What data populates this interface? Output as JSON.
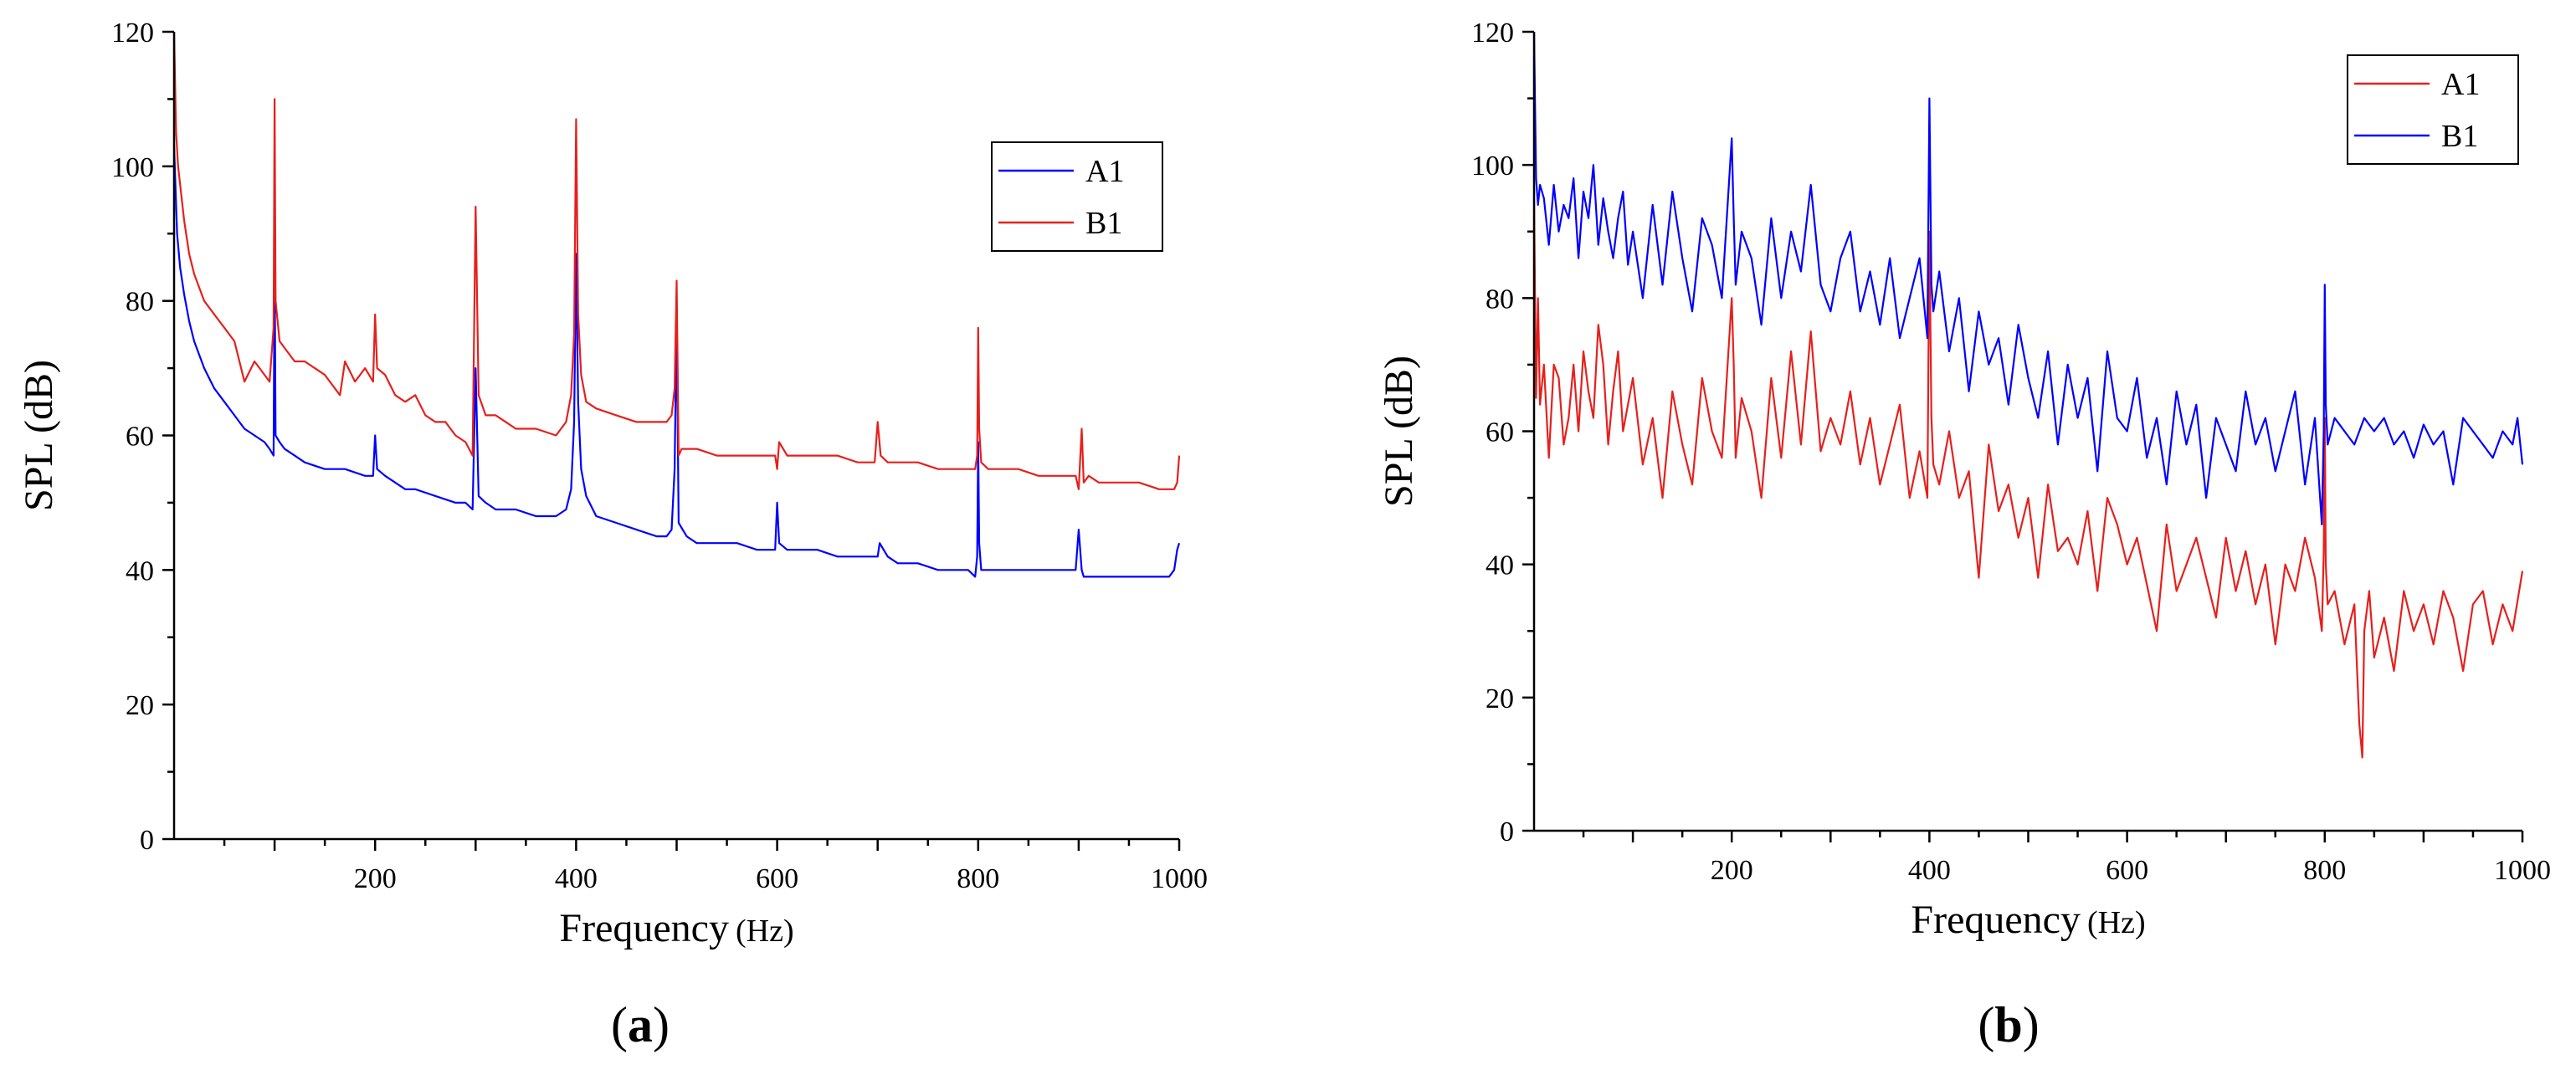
{
  "chart_data": [
    {
      "type": "line",
      "caption_prefix": "(",
      "caption_letter": "a",
      "caption_suffix": ")",
      "xlabel": "Frequency",
      "xlabel_unit": "(Hz)",
      "ylabel": "SPL (dB)",
      "xlim": [
        0,
        1000
      ],
      "ylim": [
        0,
        120
      ],
      "xticks": [
        200,
        400,
        600,
        800,
        1000
      ],
      "yticks": [
        0,
        20,
        40,
        60,
        80,
        100,
        120
      ],
      "legend_position": "top-right",
      "series": [
        {
          "name": "A1",
          "color": "#0000ff",
          "x": [
            0,
            3,
            6,
            10,
            15,
            20,
            30,
            40,
            50,
            60,
            70,
            80,
            90,
            95,
            99,
            100,
            101,
            105,
            110,
            120,
            130,
            150,
            170,
            190,
            198,
            200,
            202,
            210,
            220,
            230,
            240,
            260,
            280,
            290,
            297,
            300,
            303,
            310,
            320,
            340,
            360,
            380,
            390,
            395,
            398,
            400,
            402,
            405,
            410,
            420,
            440,
            460,
            480,
            490,
            495,
            498,
            500,
            502,
            510,
            520,
            540,
            560,
            580,
            590,
            598,
            600,
            602,
            610,
            620,
            640,
            660,
            680,
            690,
            700,
            702,
            710,
            720,
            740,
            760,
            780,
            790,
            797,
            799,
            800,
            801,
            803,
            810,
            820,
            840,
            860,
            880,
            890,
            897,
            900,
            903,
            905,
            910,
            920,
            940,
            960,
            980,
            990,
            995,
            998,
            1000
          ],
          "y": [
            103,
            90,
            85,
            81,
            77,
            74,
            70,
            67,
            65,
            63,
            61,
            60,
            59,
            58,
            57,
            86,
            60,
            59,
            58,
            57,
            56,
            55,
            55,
            54,
            54,
            60,
            55,
            54,
            53,
            52,
            52,
            51,
            50,
            50,
            49,
            70,
            51,
            50,
            49,
            49,
            48,
            48,
            49,
            52,
            62,
            87,
            65,
            55,
            51,
            48,
            47,
            46,
            45,
            45,
            46,
            55,
            78,
            47,
            45,
            44,
            44,
            44,
            43,
            43,
            43,
            50,
            44,
            43,
            43,
            43,
            42,
            42,
            42,
            42,
            44,
            42,
            41,
            41,
            40,
            40,
            40,
            39,
            42,
            59,
            44,
            40,
            40,
            40,
            40,
            40,
            40,
            40,
            40,
            46,
            40,
            39,
            39,
            39,
            39,
            39,
            39,
            39,
            40,
            43,
            44
          ]
        },
        {
          "name": "B1",
          "color": "#e6201c",
          "x": [
            0,
            2,
            4,
            7,
            10,
            15,
            20,
            30,
            40,
            50,
            60,
            70,
            80,
            90,
            95,
            99,
            100,
            101,
            105,
            110,
            120,
            130,
            150,
            165,
            170,
            180,
            190,
            198,
            200,
            202,
            210,
            220,
            230,
            240,
            250,
            260,
            270,
            280,
            290,
            297,
            300,
            303,
            310,
            320,
            330,
            340,
            360,
            380,
            390,
            395,
            398,
            400,
            402,
            405,
            410,
            420,
            440,
            460,
            480,
            490,
            495,
            498,
            500,
            502,
            505,
            510,
            520,
            540,
            560,
            580,
            590,
            598,
            600,
            602,
            610,
            620,
            640,
            660,
            680,
            690,
            697,
            700,
            703,
            710,
            720,
            740,
            760,
            780,
            790,
            797,
            799,
            800,
            801,
            803,
            810,
            820,
            840,
            860,
            880,
            890,
            897,
            900,
            903,
            905,
            910,
            920,
            940,
            960,
            980,
            990,
            995,
            998,
            1000
          ],
          "y": [
            120,
            105,
            100,
            96,
            92,
            87,
            84,
            80,
            78,
            76,
            74,
            68,
            71,
            69,
            68,
            76,
            110,
            80,
            74,
            73,
            71,
            71,
            69,
            66,
            71,
            68,
            70,
            68,
            78,
            70,
            69,
            66,
            65,
            66,
            63,
            62,
            62,
            60,
            59,
            57,
            94,
            66,
            63,
            63,
            62,
            61,
            61,
            60,
            62,
            66,
            75,
            107,
            78,
            69,
            65,
            64,
            63,
            62,
            62,
            62,
            63,
            67,
            83,
            57,
            58,
            58,
            58,
            57,
            57,
            57,
            57,
            57,
            55,
            59,
            57,
            57,
            57,
            57,
            56,
            56,
            56,
            62,
            57,
            56,
            56,
            56,
            55,
            55,
            55,
            55,
            57,
            76,
            61,
            56,
            55,
            55,
            55,
            54,
            54,
            54,
            54,
            52,
            61,
            53,
            54,
            53,
            53,
            53,
            52,
            52,
            52,
            53,
            57
          ]
        }
      ]
    },
    {
      "type": "line",
      "caption_prefix": "(",
      "caption_letter": "b",
      "caption_suffix": ")",
      "xlabel": "Frequency",
      "xlabel_unit": "(Hz)",
      "ylabel": "SPL (dB)",
      "xlim": [
        0,
        1000
      ],
      "ylim": [
        0,
        120
      ],
      "xticks": [
        200,
        400,
        600,
        800,
        1000
      ],
      "yticks": [
        0,
        20,
        40,
        60,
        80,
        100,
        120
      ],
      "legend_position": "top-right",
      "series": [
        {
          "name": "A1",
          "color": "#e6201c",
          "x": [
            0,
            2,
            4,
            6,
            10,
            15,
            20,
            25,
            30,
            35,
            40,
            45,
            50,
            55,
            60,
            65,
            70,
            75,
            80,
            85,
            90,
            95,
            100,
            110,
            120,
            130,
            140,
            150,
            160,
            170,
            180,
            190,
            200,
            202,
            204,
            210,
            220,
            230,
            240,
            250,
            260,
            270,
            280,
            290,
            300,
            310,
            320,
            330,
            340,
            350,
            360,
            370,
            380,
            390,
            398,
            400,
            402,
            404,
            410,
            420,
            430,
            440,
            450,
            460,
            470,
            480,
            490,
            500,
            510,
            520,
            530,
            540,
            550,
            560,
            570,
            580,
            590,
            600,
            610,
            620,
            630,
            640,
            650,
            660,
            670,
            680,
            690,
            700,
            710,
            720,
            730,
            740,
            750,
            760,
            770,
            780,
            790,
            797,
            799,
            800,
            801,
            803,
            810,
            820,
            830,
            835,
            838,
            840,
            845,
            850,
            860,
            870,
            880,
            890,
            900,
            910,
            920,
            930,
            940,
            950,
            960,
            970,
            980,
            990,
            1000
          ],
          "y": [
            95,
            65,
            80,
            64,
            70,
            56,
            70,
            68,
            58,
            62,
            70,
            60,
            72,
            66,
            62,
            76,
            70,
            58,
            66,
            72,
            60,
            64,
            68,
            55,
            62,
            50,
            66,
            58,
            52,
            68,
            60,
            56,
            80,
            70,
            56,
            65,
            60,
            50,
            68,
            56,
            72,
            58,
            75,
            57,
            62,
            58,
            66,
            55,
            62,
            52,
            58,
            64,
            50,
            57,
            50,
            90,
            62,
            55,
            52,
            60,
            50,
            54,
            38,
            58,
            48,
            52,
            44,
            50,
            38,
            52,
            42,
            44,
            40,
            48,
            36,
            50,
            46,
            40,
            44,
            37,
            30,
            46,
            36,
            40,
            44,
            38,
            32,
            44,
            36,
            42,
            34,
            40,
            28,
            40,
            36,
            44,
            38,
            30,
            42,
            62,
            40,
            34,
            36,
            28,
            34,
            16,
            11,
            30,
            36,
            26,
            32,
            24,
            36,
            30,
            34,
            28,
            36,
            32,
            24,
            34,
            36,
            28,
            34,
            30,
            39
          ]
        },
        {
          "name": "B1",
          "color": "#0000ff",
          "x": [
            0,
            2,
            4,
            6,
            10,
            15,
            20,
            25,
            30,
            35,
            40,
            45,
            50,
            55,
            60,
            65,
            70,
            75,
            80,
            85,
            90,
            95,
            100,
            110,
            120,
            130,
            140,
            150,
            160,
            170,
            180,
            190,
            200,
            202,
            204,
            210,
            220,
            230,
            240,
            250,
            260,
            270,
            280,
            290,
            300,
            310,
            320,
            330,
            340,
            350,
            360,
            370,
            380,
            390,
            398,
            400,
            402,
            404,
            410,
            420,
            430,
            440,
            450,
            460,
            470,
            480,
            490,
            500,
            510,
            520,
            530,
            540,
            550,
            560,
            570,
            580,
            590,
            600,
            610,
            620,
            630,
            640,
            650,
            660,
            670,
            680,
            690,
            700,
            710,
            720,
            730,
            740,
            750,
            760,
            770,
            780,
            790,
            797,
            799,
            800,
            801,
            803,
            810,
            820,
            830,
            840,
            850,
            860,
            870,
            880,
            890,
            900,
            910,
            920,
            930,
            940,
            950,
            960,
            970,
            980,
            990,
            995,
            1000
          ],
          "y": [
            120,
            98,
            94,
            97,
            95,
            88,
            97,
            90,
            94,
            92,
            98,
            86,
            96,
            92,
            100,
            88,
            95,
            90,
            86,
            92,
            96,
            85,
            90,
            80,
            94,
            82,
            96,
            86,
            78,
            92,
            88,
            80,
            104,
            92,
            82,
            90,
            86,
            76,
            92,
            80,
            90,
            84,
            97,
            82,
            78,
            86,
            90,
            78,
            84,
            76,
            86,
            74,
            80,
            86,
            74,
            110,
            82,
            78,
            84,
            72,
            80,
            66,
            78,
            70,
            74,
            64,
            76,
            68,
            62,
            72,
            58,
            70,
            62,
            68,
            54,
            72,
            62,
            60,
            68,
            56,
            62,
            52,
            66,
            58,
            64,
            50,
            62,
            58,
            54,
            66,
            58,
            62,
            54,
            60,
            66,
            52,
            62,
            46,
            60,
            82,
            64,
            58,
            62,
            60,
            58,
            62,
            60,
            62,
            58,
            60,
            56,
            61,
            58,
            60,
            52,
            62,
            60,
            58,
            56,
            60,
            58,
            62,
            55
          ]
        }
      ]
    }
  ]
}
